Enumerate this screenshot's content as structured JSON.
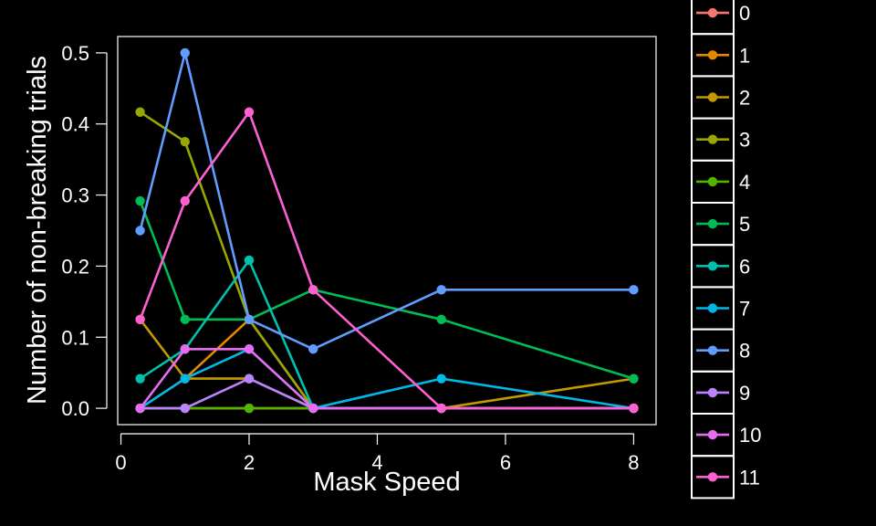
{
  "chart_data": {
    "type": "line",
    "xlabel": "Mask Speed",
    "ylabel": "Number of non-breaking trials",
    "xlim": [
      -0.05,
      8.35
    ],
    "ylim": [
      -0.023,
      0.523
    ],
    "xticks": [
      0,
      2,
      4,
      6,
      8
    ],
    "yticks": [
      0.0,
      0.1,
      0.2,
      0.3,
      0.4,
      0.5
    ],
    "ytick_labels": [
      "0.0",
      "0.1",
      "0.2",
      "0.3",
      "0.4",
      "0.5"
    ],
    "grid": false,
    "legend_position": "right",
    "x": [
      0.3,
      1,
      2,
      3,
      5,
      8
    ],
    "series": [
      {
        "name": "0",
        "color": "#f8766d",
        "values": [
          0,
          0,
          0,
          0,
          0,
          0
        ]
      },
      {
        "name": "1",
        "color": "#e58700",
        "values": [
          0,
          0.0417,
          0.125,
          0,
          0,
          0
        ]
      },
      {
        "name": "2",
        "color": "#c49a00",
        "values": [
          0.125,
          0.0417,
          0.0417,
          0,
          0,
          0.0417
        ]
      },
      {
        "name": "3",
        "color": "#99a800",
        "values": [
          0.4167,
          0.375,
          0.125,
          0,
          0,
          0
        ]
      },
      {
        "name": "4",
        "color": "#53b400",
        "values": [
          0,
          0,
          0,
          0,
          0,
          0
        ]
      },
      {
        "name": "5",
        "color": "#00bc56",
        "values": [
          0.2917,
          0.125,
          0.125,
          0.1667,
          0.125,
          0.0417
        ]
      },
      {
        "name": "6",
        "color": "#00c0af",
        "values": [
          0.0417,
          0.0833,
          0.2083,
          0,
          0,
          0
        ]
      },
      {
        "name": "7",
        "color": "#00b8e7",
        "values": [
          0,
          0.0417,
          0.0833,
          0,
          0.0417,
          0
        ]
      },
      {
        "name": "8",
        "color": "#619cff",
        "values": [
          0.25,
          0.5,
          0.125,
          0.0833,
          0.1667,
          0.1667
        ]
      },
      {
        "name": "9",
        "color": "#b983ff",
        "values": [
          0,
          0,
          0.0417,
          0,
          0,
          0
        ]
      },
      {
        "name": "10",
        "color": "#e76bf3",
        "values": [
          0,
          0.0833,
          0.0833,
          0,
          0,
          0
        ]
      },
      {
        "name": "11",
        "color": "#fd61d1",
        "values": [
          0.125,
          0.2917,
          0.4167,
          0.1667,
          0,
          0
        ]
      }
    ]
  }
}
